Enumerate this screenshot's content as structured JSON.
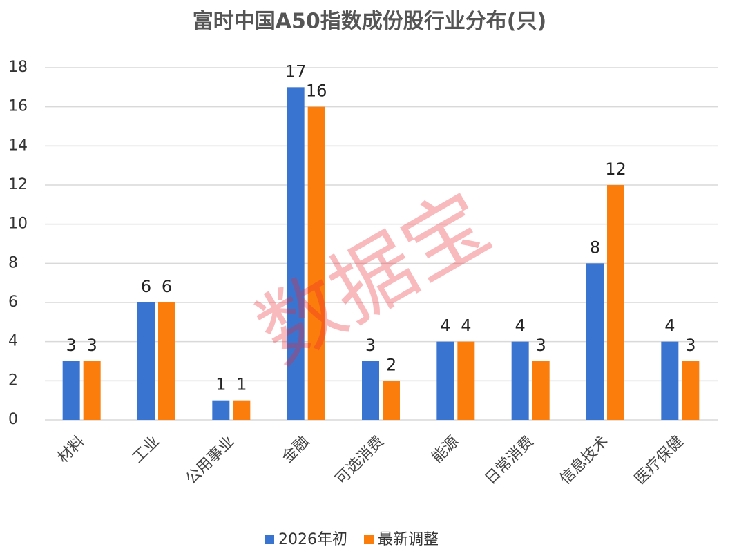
{
  "chart_data": {
    "type": "bar",
    "title": "富时中国A50指数成份股行业分布(只)",
    "categories": [
      "材料",
      "工业",
      "公用事业",
      "金融",
      "可选消费",
      "能源",
      "日常消费",
      "信息技术",
      "医疗保健"
    ],
    "series": [
      {
        "name": "2026年初",
        "color": "#3a74d1",
        "values": [
          3,
          6,
          1,
          17,
          3,
          4,
          4,
          8,
          4
        ]
      },
      {
        "name": "最新调整",
        "color": "#fb7d0b",
        "values": [
          3,
          6,
          1,
          16,
          2,
          4,
          3,
          12,
          3
        ]
      }
    ],
    "ylim": [
      0,
      18
    ],
    "yticks": [
      0,
      2,
      4,
      6,
      8,
      10,
      12,
      14,
      16,
      18
    ],
    "grid": true,
    "legend": "bottom",
    "watermark": "数据宝"
  }
}
